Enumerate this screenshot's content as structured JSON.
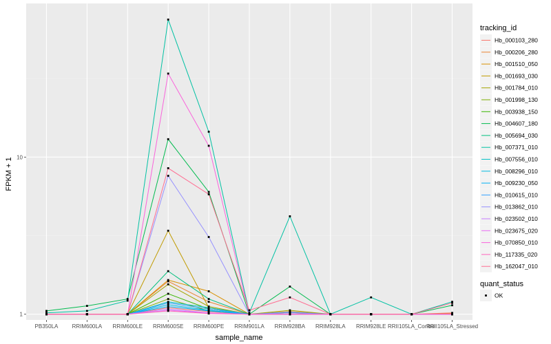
{
  "chart_data": {
    "type": "line",
    "xlabel": "sample_name",
    "ylabel": "FPKM + 1",
    "y_scale": "log10",
    "ylim": [
      0.92,
      95
    ],
    "y_ticks": [
      {
        "value": 1,
        "label": "1"
      },
      {
        "value": 10,
        "label": "10"
      }
    ],
    "categories": [
      "PB350LA",
      "RRIM600LA",
      "RRIM600LE",
      "RRIM600SE",
      "RRIM600PE",
      "RRIM901LA",
      "RRIM928BA",
      "RRIM928LA",
      "RRIM928LE",
      "RRII105LA_Control",
      "RRII105LA_Stressed"
    ],
    "legend_title": "tracking_id",
    "series": [
      {
        "name": "Hb_000103_280",
        "color": "#F8766D",
        "values": [
          1.0,
          1.0,
          1.0,
          1.1,
          1.04,
          1.0,
          1.02,
          1.0,
          1.0,
          1.0,
          1.02
        ]
      },
      {
        "name": "Hb_000206_280",
        "color": "#EA8331",
        "values": [
          1.0,
          1.0,
          1.0,
          1.62,
          1.2,
          1.0,
          1.04,
          1.0,
          1.0,
          1.0,
          1.01
        ]
      },
      {
        "name": "Hb_001510_050",
        "color": "#D89000",
        "values": [
          1.0,
          1.0,
          1.0,
          1.65,
          1.4,
          1.0,
          1.02,
          1.0,
          1.0,
          1.0,
          1.0
        ]
      },
      {
        "name": "Hb_001693_030",
        "color": "#C09B00",
        "values": [
          1.0,
          1.0,
          1.0,
          3.4,
          1.1,
          1.0,
          1.0,
          1.0,
          1.0,
          1.0,
          1.0
        ]
      },
      {
        "name": "Hb_001784_010",
        "color": "#A3A500",
        "values": [
          1.0,
          1.0,
          1.0,
          1.55,
          1.12,
          1.0,
          1.06,
          1.0,
          1.0,
          1.0,
          1.0
        ]
      },
      {
        "name": "Hb_001998_130",
        "color": "#7CAE00",
        "values": [
          1.0,
          1.0,
          1.0,
          1.25,
          1.05,
          1.0,
          1.0,
          1.0,
          1.0,
          1.0,
          1.0
        ]
      },
      {
        "name": "Hb_003938_150",
        "color": "#39B600",
        "values": [
          1.0,
          1.0,
          1.0,
          1.35,
          1.08,
          1.0,
          1.0,
          1.0,
          1.0,
          1.0,
          1.0
        ]
      },
      {
        "name": "Hb_004607_180",
        "color": "#00BB4E",
        "values": [
          1.05,
          1.13,
          1.25,
          13.0,
          6.0,
          1.0,
          1.5,
          1.0,
          1.0,
          1.0,
          1.14
        ]
      },
      {
        "name": "Hb_005694_030",
        "color": "#00BF7D",
        "values": [
          1.0,
          1.0,
          1.0,
          1.88,
          1.25,
          1.0,
          1.0,
          1.0,
          1.0,
          1.0,
          1.0
        ]
      },
      {
        "name": "Hb_007371_010",
        "color": "#00C1A3",
        "values": [
          1.02,
          1.05,
          1.22,
          75.0,
          14.5,
          1.02,
          4.2,
          1.0,
          1.28,
          1.0,
          1.2
        ]
      },
      {
        "name": "Hb_007556_010",
        "color": "#00BFC4",
        "values": [
          1.0,
          1.0,
          1.0,
          1.2,
          1.1,
          1.0,
          1.0,
          1.0,
          1.0,
          1.0,
          1.0
        ]
      },
      {
        "name": "Hb_008296_010",
        "color": "#00BAE0",
        "values": [
          1.0,
          1.0,
          1.0,
          1.15,
          1.06,
          1.0,
          1.0,
          1.0,
          1.0,
          1.0,
          1.0
        ]
      },
      {
        "name": "Hb_009230_050",
        "color": "#00B0F6",
        "values": [
          1.0,
          1.0,
          1.0,
          1.12,
          1.05,
          1.0,
          1.0,
          1.0,
          1.0,
          1.0,
          1.0
        ]
      },
      {
        "name": "Hb_010615_010",
        "color": "#35A2FF",
        "values": [
          1.0,
          1.0,
          1.0,
          1.18,
          1.08,
          1.0,
          1.03,
          1.0,
          1.0,
          1.0,
          1.0
        ]
      },
      {
        "name": "Hb_013862_010",
        "color": "#9590FF",
        "values": [
          1.0,
          1.0,
          1.0,
          7.6,
          3.1,
          1.0,
          1.02,
          1.0,
          1.0,
          1.0,
          1.0
        ]
      },
      {
        "name": "Hb_023502_010",
        "color": "#C77CFF",
        "values": [
          1.0,
          1.0,
          1.0,
          1.08,
          1.02,
          1.0,
          1.0,
          1.0,
          1.0,
          1.0,
          1.0
        ]
      },
      {
        "name": "Hb_023675_020",
        "color": "#E76BF3",
        "values": [
          1.0,
          1.0,
          1.0,
          1.06,
          1.02,
          1.0,
          1.0,
          1.0,
          1.0,
          1.0,
          1.0
        ]
      },
      {
        "name": "Hb_070850_010",
        "color": "#FA62DB",
        "values": [
          1.0,
          1.0,
          1.0,
          34.0,
          11.8,
          1.0,
          1.0,
          1.0,
          1.0,
          1.0,
          1.0
        ]
      },
      {
        "name": "Hb_117335_020",
        "color": "#FF62BC",
        "values": [
          1.0,
          1.0,
          1.0,
          1.05,
          1.01,
          1.0,
          1.0,
          1.0,
          1.0,
          1.0,
          1.0
        ]
      },
      {
        "name": "Hb_162047_010",
        "color": "#FF6C91",
        "values": [
          1.0,
          1.0,
          1.0,
          8.5,
          5.8,
          1.06,
          1.28,
          1.0,
          1.0,
          1.0,
          1.18
        ]
      }
    ],
    "shape_legend": {
      "title": "quant_status",
      "items": [
        "OK"
      ]
    },
    "colors": {
      "panel": "#EBEBEB",
      "grid_major": "#FFFFFF",
      "grid_minor": "#F2F2F2",
      "point": "#000000"
    }
  }
}
